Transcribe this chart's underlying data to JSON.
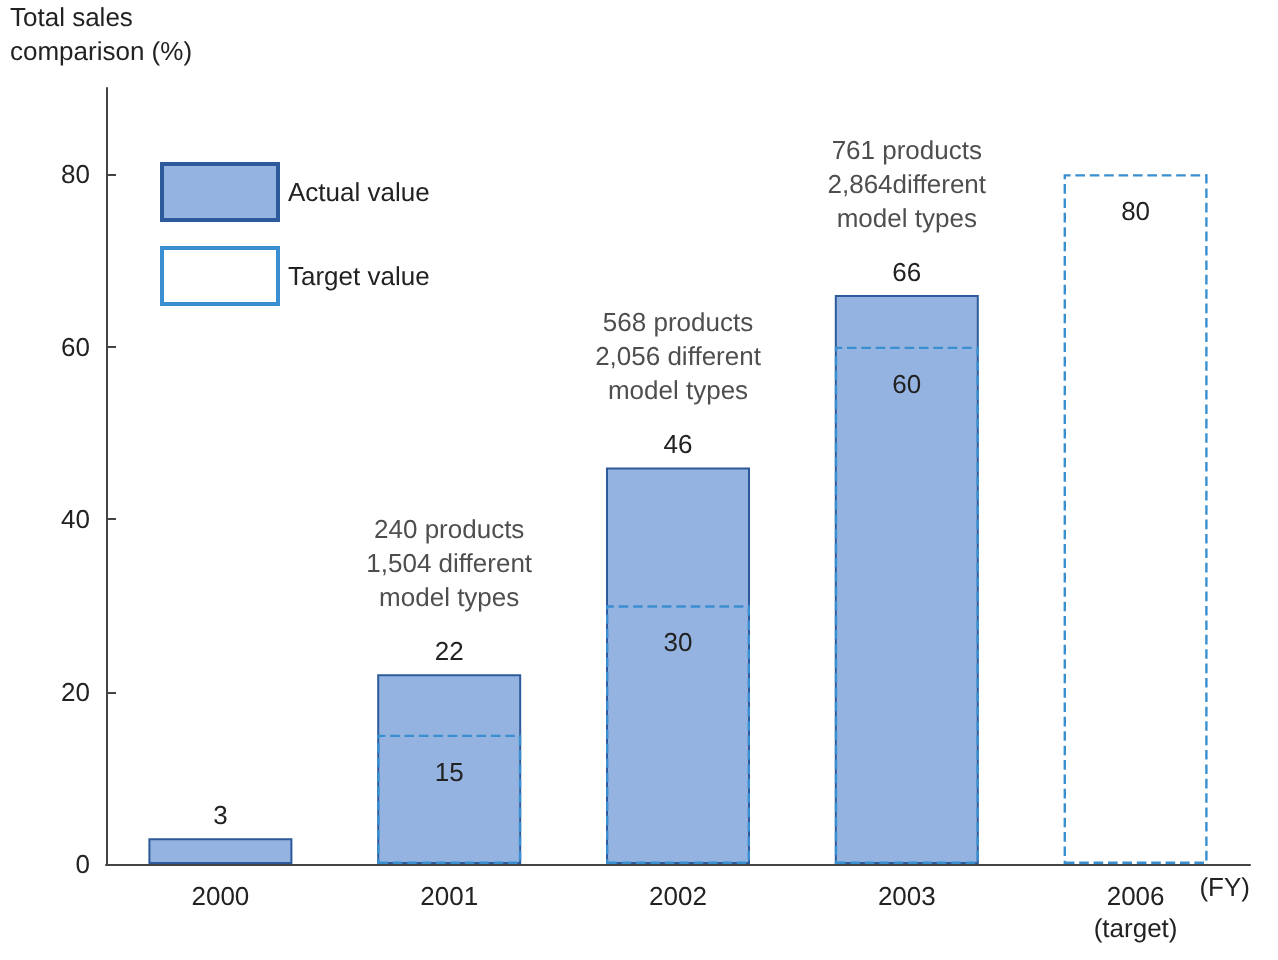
{
  "chart_data": {
    "type": "bar",
    "ylabel": "Total sales\ncomparison (%)",
    "xlabel": "(FY)",
    "categories": [
      "2000",
      "2001",
      "2002",
      "2003",
      "2006\n(target)"
    ],
    "series": [
      {
        "name": "Target value",
        "color": "#3a8fd0",
        "line_style": "dashed",
        "values": [
          null,
          15,
          30,
          60,
          80
        ]
      },
      {
        "name": "Actual value",
        "color": "#95b3e0",
        "values": [
          3,
          22,
          46,
          66,
          null
        ]
      }
    ],
    "ylim": [
      0,
      90
    ],
    "yticks": [
      0,
      20,
      40,
      60,
      80
    ],
    "grid": false,
    "legend": "top left",
    "data_labels": true,
    "annotations": [
      "240 products\n1,504 different\nmodel types",
      "568 products\n2,056 different\nmodel types",
      "761 products\n2,864different\nmodel types"
    ]
  }
}
